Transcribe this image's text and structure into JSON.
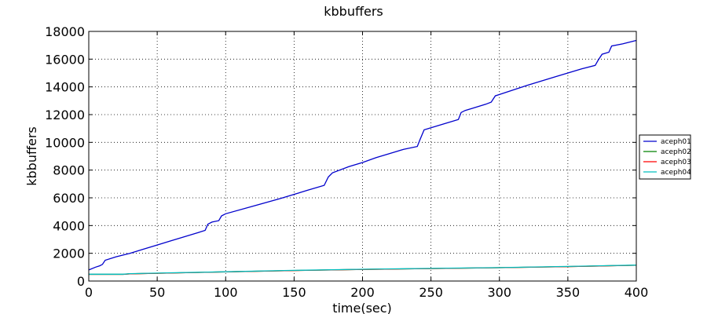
{
  "chart_data": {
    "type": "line",
    "title": "kbbuffers",
    "xlabel": "time(sec)",
    "ylabel": "kbbuffers",
    "xlim": [
      0,
      400
    ],
    "ylim": [
      0,
      18000
    ],
    "xticks": [
      0,
      50,
      100,
      150,
      200,
      250,
      300,
      350,
      400
    ],
    "yticks": [
      0,
      2000,
      4000,
      6000,
      8000,
      10000,
      12000,
      14000,
      16000,
      18000
    ],
    "grid": true,
    "legend_position": "right",
    "series": [
      {
        "name": "aceph01",
        "color": "#0000cc",
        "x": [
          0,
          5,
          8,
          10,
          12,
          20,
          30,
          40,
          50,
          60,
          70,
          80,
          85,
          87,
          90,
          95,
          97,
          100,
          120,
          140,
          160,
          172,
          175,
          178,
          190,
          200,
          210,
          220,
          230,
          240,
          242,
          245,
          250,
          260,
          270,
          272,
          275,
          280,
          290,
          294,
          297,
          300,
          320,
          340,
          360,
          370,
          372,
          375,
          380,
          382,
          390,
          400
        ],
        "y": [
          800,
          1000,
          1100,
          1200,
          1500,
          1750,
          2000,
          2300,
          2600,
          2900,
          3200,
          3500,
          3650,
          4100,
          4250,
          4350,
          4700,
          4850,
          5400,
          5950,
          6550,
          6900,
          7500,
          7800,
          8250,
          8550,
          8900,
          9200,
          9500,
          9700,
          10200,
          10900,
          11050,
          11350,
          11650,
          12150,
          12300,
          12450,
          12750,
          12900,
          13350,
          13450,
          14100,
          14700,
          15300,
          15550,
          15900,
          16350,
          16500,
          16950,
          17100,
          17350
        ]
      },
      {
        "name": "aceph02",
        "color": "#008000",
        "x": [
          0,
          25,
          30,
          50,
          100,
          150,
          200,
          250,
          300,
          350,
          400
        ],
        "y": [
          480,
          480,
          520,
          560,
          660,
          760,
          840,
          900,
          960,
          1040,
          1140
        ]
      },
      {
        "name": "aceph03",
        "color": "#ff0000",
        "x": [
          0,
          25,
          30,
          50,
          100,
          150,
          200,
          250,
          300,
          350,
          400
        ],
        "y": [
          480,
          480,
          520,
          560,
          660,
          760,
          840,
          900,
          960,
          1040,
          1140
        ]
      },
      {
        "name": "aceph04",
        "color": "#00bfbf",
        "x": [
          0,
          25,
          30,
          50,
          100,
          150,
          200,
          250,
          300,
          350,
          400
        ],
        "y": [
          490,
          490,
          530,
          570,
          670,
          770,
          850,
          910,
          970,
          1050,
          1150
        ]
      }
    ]
  }
}
